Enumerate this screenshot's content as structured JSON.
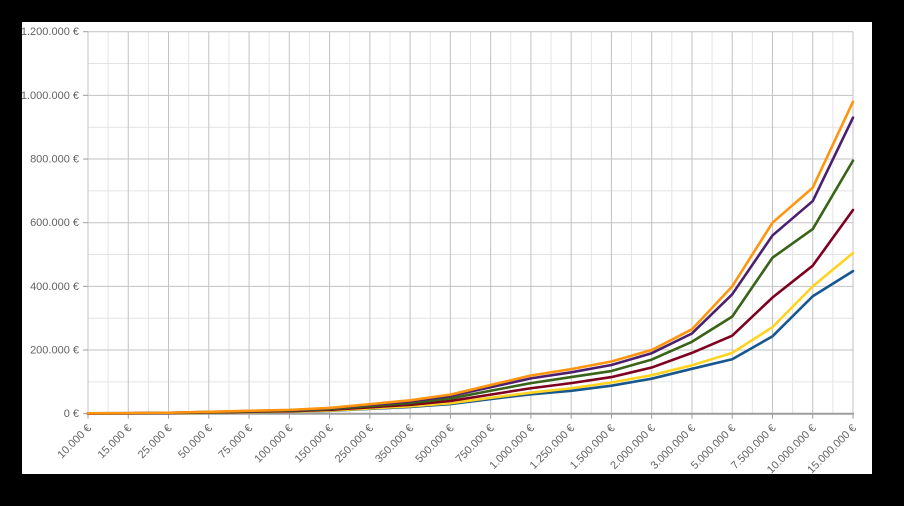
{
  "page": {
    "background_color": "#000000",
    "panel_background_color": "#ffffff"
  },
  "chart_data": {
    "type": "line",
    "title": "",
    "legend": "none",
    "grid": {
      "major_color": "#c2c2c2",
      "minor_color": "#e4e4e4",
      "axis_color": "#9e9e9e",
      "label_color": "#636363",
      "show_minor_x_between_categories": true,
      "show_minor_y": true
    },
    "x_axis": {
      "label_rotation_deg": -45,
      "tick_labels": [
        "10.000 €",
        "15.000 €",
        "25.000 €",
        "50.000 €",
        "75.000 €",
        "100.000 €",
        "150.000 €",
        "250.000 €",
        "350.000 €",
        "500.000 €",
        "750.000 €",
        "1.000.000 €",
        "1.250.000 €",
        "1.500.000 €",
        "2.000.000 €",
        "3.000.000 €",
        "5.000.000 €",
        "7.500.000 €",
        "10.000.000 €",
        "15.000.000 €"
      ]
    },
    "y_axis": {
      "min": 0,
      "max": 1200000,
      "major_step": 200000,
      "minor_step": 100000,
      "tick_labels": [
        "0 €",
        "200.000 €",
        "400.000 €",
        "600.000 €",
        "800.000 €",
        "1.000.000 €",
        "1.200.000 €"
      ]
    },
    "series": [
      {
        "name": "blue",
        "color": "#17568F",
        "values": [
          600,
          900,
          1500,
          3000,
          4600,
          6100,
          9100,
          15200,
          21300,
          30400,
          46000,
          61000,
          72000,
          88000,
          110000,
          141000,
          171000,
          243000,
          369000,
          448000
        ]
      },
      {
        "name": "yellow",
        "color": "#FFD320",
        "values": [
          700,
          1000,
          1700,
          3300,
          5000,
          6600,
          10000,
          16500,
          23000,
          33000,
          50000,
          66000,
          80000,
          98000,
          121000,
          152000,
          191000,
          272000,
          400000,
          505000
        ]
      },
      {
        "name": "dark-red",
        "color": "#7E0021",
        "values": [
          800,
          1200,
          2000,
          4000,
          6000,
          8000,
          12000,
          20000,
          28000,
          40000,
          60000,
          80000,
          96000,
          115000,
          145000,
          191000,
          245000,
          365000,
          465000,
          640000
        ]
      },
      {
        "name": "dark-green",
        "color": "#386318",
        "values": [
          1000,
          1400,
          2400,
          4800,
          7200,
          9600,
          14400,
          24000,
          33600,
          48000,
          72000,
          96000,
          115000,
          134000,
          170000,
          226000,
          305000,
          490000,
          580000,
          795000
        ]
      },
      {
        "name": "purple",
        "color": "#4B1F6F",
        "values": [
          1100,
          1700,
          2800,
          5500,
          8300,
          11100,
          16700,
          27800,
          39000,
          55500,
          83000,
          111000,
          130000,
          153000,
          190000,
          252000,
          375000,
          560000,
          668000,
          930000
        ]
      },
      {
        "name": "orange",
        "color": "#FF950E",
        "values": [
          1200,
          1800,
          3000,
          6000,
          9000,
          12000,
          18000,
          30000,
          42000,
          60000,
          90000,
          120000,
          140000,
          164000,
          200000,
          265000,
          400000,
          600000,
          710000,
          980000
        ]
      }
    ]
  }
}
